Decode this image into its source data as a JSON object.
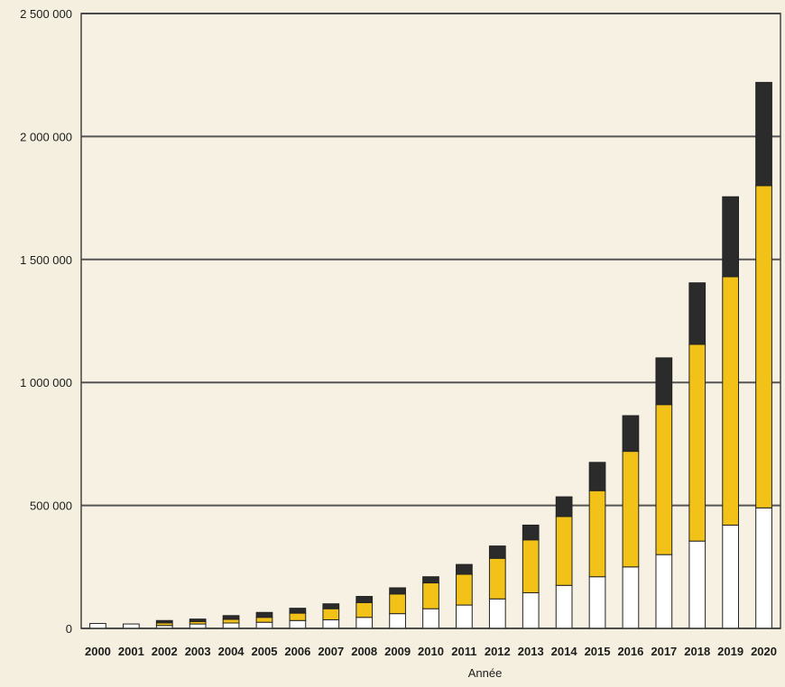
{
  "chart_data": {
    "type": "bar",
    "stacked": true,
    "xlabel": "Année",
    "ylabel": "",
    "ylim": [
      0,
      2500000
    ],
    "yticks": [
      0,
      500000,
      1000000,
      1500000,
      2000000,
      2500000
    ],
    "ytick_labels": [
      "0",
      "500 000",
      "1 000 000",
      "1 500 000",
      "2 000 000",
      "2 500 000"
    ],
    "grid": true,
    "categories": [
      "2000",
      "2001",
      "2002",
      "2003",
      "2004",
      "2005",
      "2006",
      "2007",
      "2008",
      "2009",
      "2010",
      "2011",
      "2012",
      "2013",
      "2014",
      "2015",
      "2016",
      "2017",
      "2018",
      "2019",
      "2020"
    ],
    "series": [
      {
        "color": "#ffffff",
        "values": [
          20000,
          18000,
          12000,
          18000,
          22000,
          25000,
          32000,
          35000,
          45000,
          60000,
          80000,
          95000,
          120000,
          145000,
          175000,
          210000,
          250000,
          300000,
          355000,
          420000,
          490000
        ]
      },
      {
        "color": "#f2c219",
        "values": [
          0,
          0,
          10000,
          10000,
          15000,
          20000,
          30000,
          45000,
          60000,
          80000,
          105000,
          125000,
          165000,
          215000,
          280000,
          350000,
          470000,
          610000,
          800000,
          1010000,
          1310000
        ]
      },
      {
        "color": "#2b2b2b",
        "values": [
          0,
          0,
          10000,
          10000,
          15000,
          20000,
          20000,
          20000,
          25000,
          25000,
          25000,
          40000,
          50000,
          60000,
          80000,
          115000,
          145000,
          190000,
          250000,
          325000,
          420000
        ]
      }
    ]
  }
}
